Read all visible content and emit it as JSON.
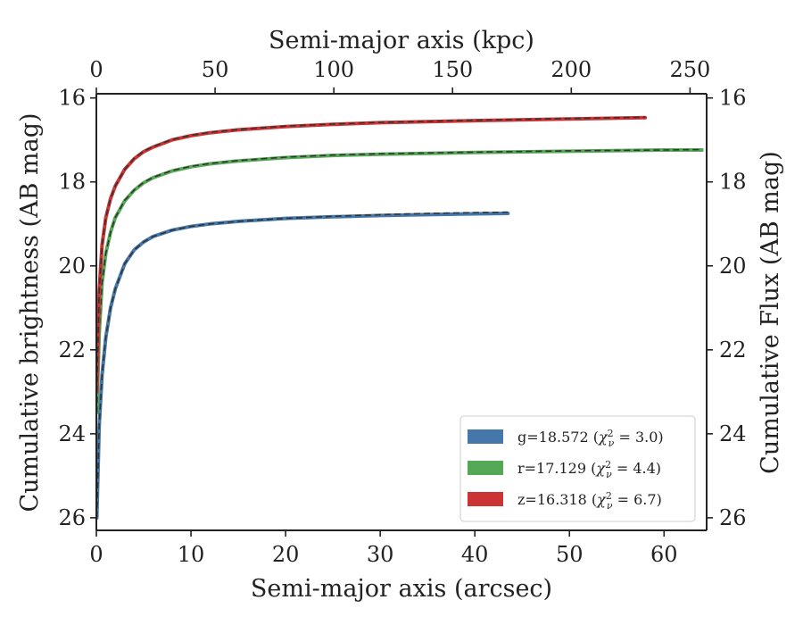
{
  "chart_data": {
    "type": "line",
    "title": "",
    "xlabel": "Semi-major axis (arcsec)",
    "xlabel_top": "Semi-major axis (kpc)",
    "ylabel": "Cumulative brightness (AB mag)",
    "ylabel_right": "Cumulative Flux (AB mag)",
    "xlim": [
      0,
      64.5
    ],
    "xlim_top": [
      0,
      257
    ],
    "ylim": [
      26.3,
      15.9
    ],
    "y_inverted": true,
    "xticks": [
      0,
      10,
      20,
      30,
      40,
      50,
      60
    ],
    "xticks_top": [
      0,
      50,
      100,
      150,
      200,
      250
    ],
    "yticks": [
      16,
      18,
      20,
      22,
      24,
      26
    ],
    "grid": false,
    "legend_position": "lower-right",
    "series": [
      {
        "name": "g=18.572 (χ²_ν = 3.0)",
        "legend_label": "g=18.572",
        "legend_chi": "3.0",
        "color": "#4477AA",
        "x": [
          0.05,
          0.3,
          0.6,
          1.0,
          1.5,
          2,
          3,
          4,
          5,
          6,
          8,
          10,
          12,
          15,
          20,
          25,
          30,
          35,
          40,
          43.5
        ],
        "y": [
          26.0,
          23.8,
          22.6,
          21.7,
          21.0,
          20.55,
          19.95,
          19.62,
          19.43,
          19.3,
          19.15,
          19.06,
          19.0,
          18.94,
          18.87,
          18.83,
          18.8,
          18.78,
          18.76,
          18.75
        ],
        "model_y": [
          26.0,
          23.8,
          22.6,
          21.7,
          21.0,
          20.55,
          19.95,
          19.62,
          19.43,
          19.3,
          19.15,
          19.06,
          19.0,
          18.94,
          18.87,
          18.82,
          18.78,
          18.75,
          18.73,
          18.72
        ]
      },
      {
        "name": "r=17.129 (χ²_ν = 4.4)",
        "legend_label": "r=17.129",
        "legend_chi": "4.4",
        "color": "#55A855",
        "x": [
          0.05,
          0.3,
          0.6,
          1.0,
          1.5,
          2,
          3,
          4,
          5,
          6,
          8,
          10,
          12,
          15,
          20,
          25,
          30,
          40,
          50,
          60,
          64
        ],
        "y": [
          23.5,
          21.6,
          20.4,
          19.7,
          19.2,
          18.85,
          18.45,
          18.2,
          18.02,
          17.9,
          17.74,
          17.64,
          17.57,
          17.5,
          17.42,
          17.37,
          17.34,
          17.3,
          17.27,
          17.24,
          17.24
        ],
        "model_y": [
          23.5,
          21.6,
          20.4,
          19.7,
          19.2,
          18.85,
          18.44,
          18.19,
          18.01,
          17.89,
          17.73,
          17.63,
          17.56,
          17.49,
          17.41,
          17.36,
          17.33,
          17.29,
          17.26,
          17.24,
          17.23
        ]
      },
      {
        "name": "z=16.318 (χ²_ν = 6.7)",
        "legend_label": "z=16.318",
        "legend_chi": "6.7",
        "color": "#CC3333",
        "x": [
          0.05,
          0.3,
          0.6,
          1.0,
          1.5,
          2,
          3,
          4,
          5,
          6,
          8,
          10,
          12,
          15,
          20,
          25,
          30,
          40,
          50,
          58
        ],
        "y": [
          23.0,
          20.6,
          19.5,
          18.85,
          18.4,
          18.1,
          17.7,
          17.45,
          17.28,
          17.17,
          17.0,
          16.9,
          16.83,
          16.76,
          16.68,
          16.63,
          16.59,
          16.54,
          16.5,
          16.47
        ],
        "model_y": [
          23.0,
          20.6,
          19.5,
          18.85,
          18.4,
          18.1,
          17.7,
          17.44,
          17.27,
          17.16,
          16.99,
          16.89,
          16.82,
          16.75,
          16.67,
          16.62,
          16.58,
          16.53,
          16.49,
          16.46
        ]
      }
    ]
  }
}
